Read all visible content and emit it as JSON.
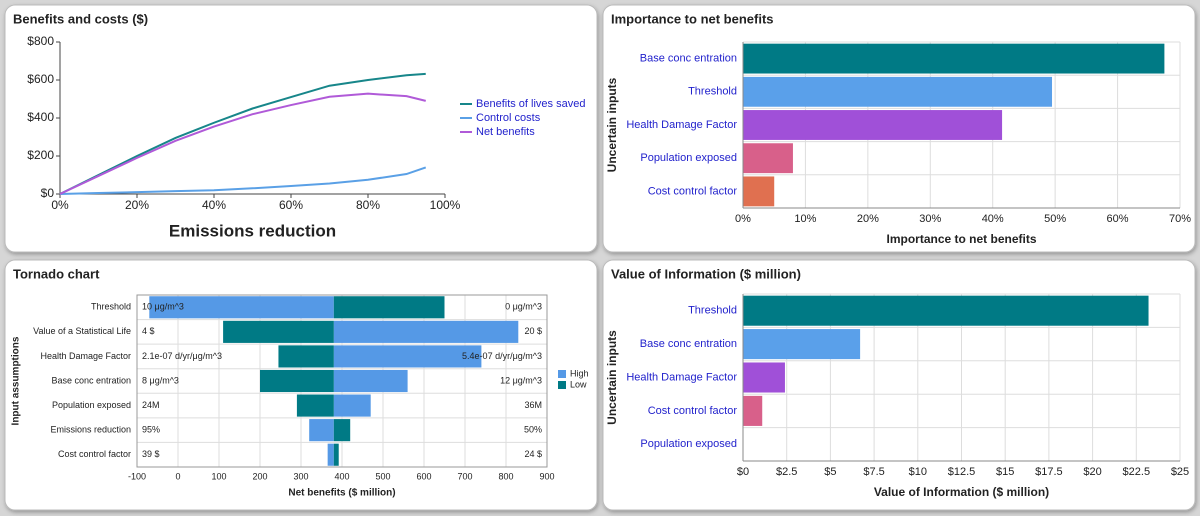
{
  "chart_data": [
    {
      "type": "line",
      "title": "Benefits and costs ($)",
      "x_label": "Emissions reduction",
      "x": [
        0,
        10,
        20,
        30,
        40,
        50,
        60,
        70,
        80,
        90,
        95
      ],
      "series": [
        {
          "name": "Benefits of lives saved",
          "color": "#17868a",
          "values": [
            0,
            100,
            200,
            295,
            375,
            450,
            510,
            570,
            600,
            625,
            632
          ]
        },
        {
          "name": "Control costs",
          "color": "#5aa0e6",
          "values": [
            0,
            5,
            10,
            15,
            20,
            30,
            42,
            55,
            75,
            105,
            140
          ]
        },
        {
          "name": "Net benefits",
          "color": "#b05ad8",
          "values": [
            0,
            95,
            190,
            280,
            355,
            420,
            468,
            512,
            528,
            515,
            490
          ]
        }
      ],
      "xlim": [
        0,
        100
      ],
      "xticks": [
        {
          "value": 0,
          "label": "0%"
        },
        {
          "value": 20,
          "label": "20%"
        },
        {
          "value": 40,
          "label": "40%"
        },
        {
          "value": 60,
          "label": "60%"
        },
        {
          "value": 80,
          "label": "80%"
        },
        {
          "value": 100,
          "label": "100%"
        }
      ],
      "ylim": [
        0,
        800
      ],
      "yticks": [
        {
          "value": 0,
          "label": "$0"
        },
        {
          "value": 200,
          "label": "$200"
        },
        {
          "value": 400,
          "label": "$400"
        },
        {
          "value": 600,
          "label": "$600"
        },
        {
          "value": 800,
          "label": "$800"
        }
      ],
      "legend": "right",
      "grid": false
    },
    {
      "type": "hbar",
      "title": "Importance to net benefits",
      "x_label": "Importance to net benefits",
      "y_label": "Uncertain inputs",
      "categories": [
        "Base conc entration",
        "Threshold",
        "Health Damage Factor",
        "Population exposed",
        "Cost control factor"
      ],
      "values": [
        67.5,
        49.5,
        41.5,
        8,
        5
      ],
      "colors": [
        "#007a85",
        "#5aa0ea",
        "#a050d8",
        "#d8608a",
        "#e07050"
      ],
      "xlim": [
        0,
        70
      ],
      "xticks": [
        {
          "value": 0,
          "label": "0%"
        },
        {
          "value": 10,
          "label": "10%"
        },
        {
          "value": 20,
          "label": "20%"
        },
        {
          "value": 30,
          "label": "30%"
        },
        {
          "value": 40,
          "label": "40%"
        },
        {
          "value": 50,
          "label": "50%"
        },
        {
          "value": 60,
          "label": "60%"
        },
        {
          "value": 70,
          "label": "70%"
        }
      ],
      "grid": true
    },
    {
      "type": "tornado",
      "title": "Tornado chart",
      "x_label": "Net benefits ($ million)",
      "y_label": "Input assumptions",
      "categories": [
        "Threshold",
        "Value of a Statistical Life",
        "Health Damage Factor",
        "Base conc entration",
        "Population exposed",
        "Emissions reduction",
        "Cost control factor"
      ],
      "base": 380,
      "series": [
        {
          "name": "High",
          "color": "#5599e6",
          "values": [
            -70,
            830,
            740,
            560,
            470,
            320,
            365
          ]
        },
        {
          "name": "Low",
          "color": "#007a85",
          "values": [
            650,
            110,
            245,
            200,
            290,
            420,
            392
          ]
        }
      ],
      "left_labels": [
        "10 μg/m^3",
        "4 $",
        "2.1e-07 d/yr/μg/m^3",
        "8 μg/m^3",
        "24M",
        "95%",
        "39 $"
      ],
      "right_labels": [
        "0 μg/m^3",
        "20 $",
        "5.4e-07 d/yr/μg/m^3",
        "12 μg/m^3",
        "36M",
        "50%",
        "24 $"
      ],
      "xlim": [
        -100,
        900
      ],
      "xticks": [
        -100,
        0,
        100,
        200,
        300,
        400,
        500,
        600,
        700,
        800,
        900
      ],
      "legend": "right",
      "grid": true
    },
    {
      "type": "hbar",
      "title": "Value of Information ($ million)",
      "x_label": "Value of Information ($ million)",
      "y_label": "Uncertain inputs",
      "categories": [
        "Threshold",
        "Base conc entration",
        "Health Damage Factor",
        "Cost control factor",
        "Population exposed"
      ],
      "values": [
        23.2,
        6.7,
        2.4,
        1.1,
        0
      ],
      "colors": [
        "#007a85",
        "#5aa0ea",
        "#a050d8",
        "#d8608a",
        "#e07050"
      ],
      "xlim": [
        0,
        25
      ],
      "xticks": [
        {
          "value": 0,
          "label": "$0"
        },
        {
          "value": 2.5,
          "label": "$2.5"
        },
        {
          "value": 5,
          "label": "$5"
        },
        {
          "value": 7.5,
          "label": "$7.5"
        },
        {
          "value": 10,
          "label": "$10"
        },
        {
          "value": 12.5,
          "label": "$12.5"
        },
        {
          "value": 15,
          "label": "$15"
        },
        {
          "value": 17.5,
          "label": "$17.5"
        },
        {
          "value": 20,
          "label": "$20"
        },
        {
          "value": 22.5,
          "label": "$22.5"
        },
        {
          "value": 25,
          "label": "$25"
        }
      ],
      "grid": true
    }
  ]
}
